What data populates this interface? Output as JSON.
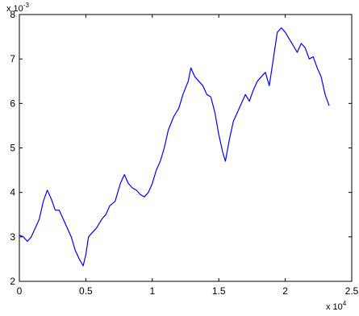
{
  "colors": {
    "series": "#0000ff",
    "axis": "#000000",
    "background": "#ffffff"
  },
  "chart_data": {
    "type": "line",
    "title": "",
    "xlabel": "",
    "ylabel": "",
    "grid": false,
    "box": true,
    "xlim": [
      0,
      25000
    ],
    "ylim": [
      0.002,
      0.008
    ],
    "x_ticks": [
      0,
      5000,
      10000,
      15000,
      20000,
      25000
    ],
    "x_tick_labels": [
      "0",
      "0.5",
      "1",
      "1.5",
      "2",
      "2.5"
    ],
    "y_ticks": [
      0.002,
      0.003,
      0.004,
      0.005,
      0.006,
      0.007,
      0.008
    ],
    "y_tick_labels": [
      "2",
      "3",
      "4",
      "5",
      "6",
      "7",
      "8"
    ],
    "x_multiplier": {
      "base": "x 10",
      "exponent": "4"
    },
    "y_multiplier": {
      "base": "x 10",
      "exponent": "-3"
    },
    "series": [
      {
        "values": [
          [
            0,
            0.00304
          ],
          [
            300,
            0.003
          ],
          [
            600,
            0.0029
          ],
          [
            900,
            0.003
          ],
          [
            1200,
            0.0032
          ],
          [
            1500,
            0.0034
          ],
          [
            1800,
            0.0038
          ],
          [
            2100,
            0.00405
          ],
          [
            2400,
            0.00385
          ],
          [
            2700,
            0.0036
          ],
          [
            3000,
            0.0036
          ],
          [
            3300,
            0.0034
          ],
          [
            3600,
            0.0032
          ],
          [
            3900,
            0.003
          ],
          [
            4200,
            0.0027
          ],
          [
            4500,
            0.0025
          ],
          [
            4800,
            0.00235
          ],
          [
            5000,
            0.0026
          ],
          [
            5200,
            0.003
          ],
          [
            5500,
            0.0031
          ],
          [
            5800,
            0.0032
          ],
          [
            6200,
            0.0034
          ],
          [
            6500,
            0.0035
          ],
          [
            6800,
            0.0037
          ],
          [
            7200,
            0.0038
          ],
          [
            7600,
            0.0042
          ],
          [
            7900,
            0.0044
          ],
          [
            8200,
            0.0042
          ],
          [
            8500,
            0.0041
          ],
          [
            8800,
            0.00405
          ],
          [
            9100,
            0.00395
          ],
          [
            9400,
            0.0039
          ],
          [
            9700,
            0.004
          ],
          [
            10000,
            0.0042
          ],
          [
            10300,
            0.0045
          ],
          [
            10600,
            0.0047
          ],
          [
            10900,
            0.005
          ],
          [
            11200,
            0.0054
          ],
          [
            11600,
            0.0057
          ],
          [
            12000,
            0.0059
          ],
          [
            12300,
            0.0062
          ],
          [
            12700,
            0.0065
          ],
          [
            12900,
            0.0068
          ],
          [
            13200,
            0.0066
          ],
          [
            13500,
            0.0065
          ],
          [
            13800,
            0.0064
          ],
          [
            14100,
            0.0062
          ],
          [
            14400,
            0.00615
          ],
          [
            14700,
            0.0058
          ],
          [
            15000,
            0.0053
          ],
          [
            15300,
            0.0049
          ],
          [
            15500,
            0.0047
          ],
          [
            15800,
            0.0052
          ],
          [
            16100,
            0.0056
          ],
          [
            16400,
            0.0058
          ],
          [
            16700,
            0.006
          ],
          [
            17000,
            0.0062
          ],
          [
            17300,
            0.00605
          ],
          [
            17600,
            0.0063
          ],
          [
            17900,
            0.0065
          ],
          [
            18200,
            0.0066
          ],
          [
            18500,
            0.0067
          ],
          [
            18800,
            0.0064
          ],
          [
            19100,
            0.007
          ],
          [
            19400,
            0.0076
          ],
          [
            19700,
            0.0077
          ],
          [
            20000,
            0.0076
          ],
          [
            20300,
            0.00745
          ],
          [
            20600,
            0.0073
          ],
          [
            20900,
            0.00715
          ],
          [
            21200,
            0.00735
          ],
          [
            21500,
            0.00725
          ],
          [
            21800,
            0.007
          ],
          [
            22100,
            0.00705
          ],
          [
            22400,
            0.0068
          ],
          [
            22700,
            0.0066
          ],
          [
            23000,
            0.0062
          ],
          [
            23300,
            0.00595
          ]
        ]
      }
    ]
  }
}
